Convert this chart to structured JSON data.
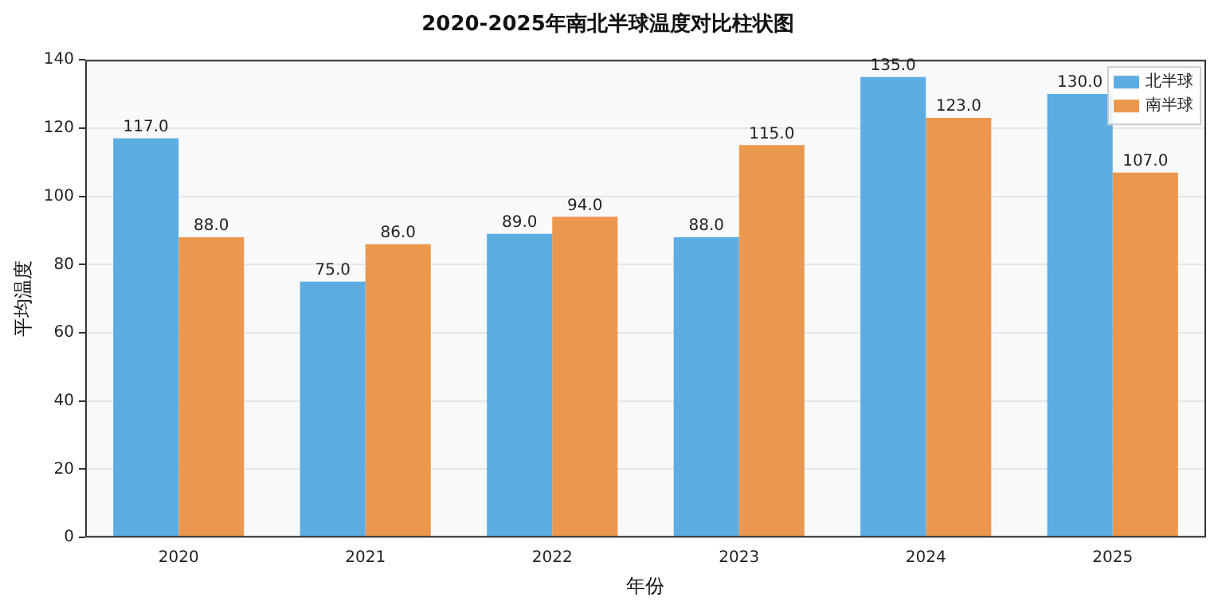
{
  "chart_data": {
    "type": "bar",
    "title": "2020-2025年南北半球温度对比柱状图",
    "xlabel": "年份",
    "ylabel": "平均温度",
    "categories": [
      "2020",
      "2021",
      "2022",
      "2023",
      "2024",
      "2025"
    ],
    "series": [
      {
        "name": "北半球",
        "color": "#5dade2",
        "values": [
          117,
          75,
          89,
          88,
          135,
          130
        ],
        "value_labels": [
          "117.0",
          "75.0",
          "89.0",
          "88.0",
          "135.0",
          "130.0"
        ]
      },
      {
        "name": "南半球",
        "color": "#eb984e",
        "values": [
          88,
          86,
          94,
          115,
          123,
          107
        ],
        "value_labels": [
          "88.0",
          "86.0",
          "94.0",
          "115.0",
          "123.0",
          "107.0"
        ]
      }
    ],
    "ylim": [
      0,
      140
    ],
    "yticks": [
      0,
      20,
      40,
      60,
      80,
      100,
      120,
      140
    ],
    "grid": "y",
    "legend": "top right"
  }
}
